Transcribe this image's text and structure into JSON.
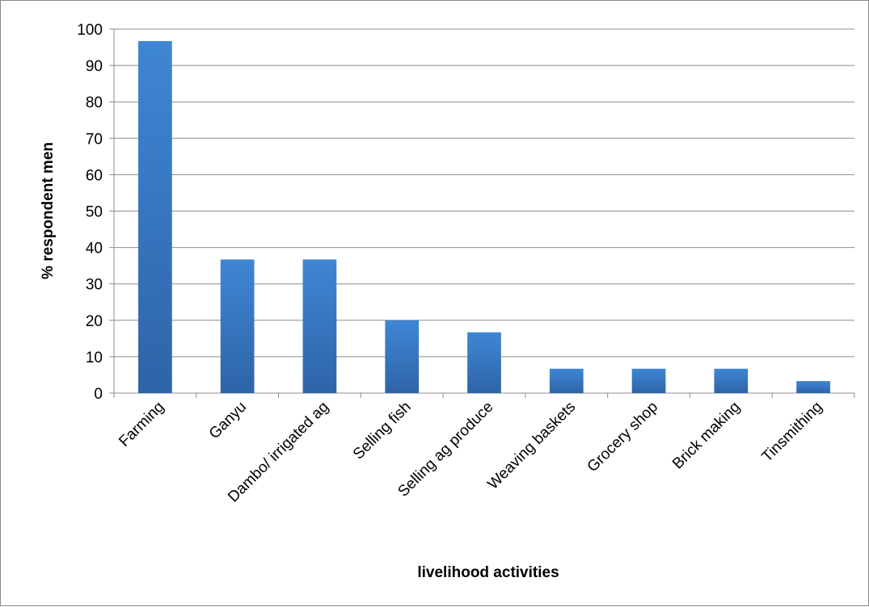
{
  "chart_data": {
    "type": "bar",
    "title": "",
    "xlabel": "livelihood activities",
    "ylabel": "% respondent men",
    "categories": [
      "Farming",
      "Ganyu",
      "Dambo/ irrigated ag",
      "Selling fish",
      "Selling ag produce",
      "Weaving baskets",
      "Grocery shop",
      "Brick making",
      "Tinsmithing"
    ],
    "values": [
      96.7,
      36.7,
      36.7,
      20,
      16.7,
      6.7,
      6.7,
      6.7,
      3.3
    ],
    "ylim": [
      0,
      100
    ],
    "yticks": [
      0,
      10,
      20,
      30,
      40,
      50,
      60,
      70,
      80,
      90,
      100
    ],
    "grid": true,
    "legend": "none",
    "colors": {
      "bar_top": "#3f86d4",
      "bar_bottom": "#2e64a8",
      "grid": "#8c8c8c",
      "axis": "#8c8c8c"
    }
  }
}
